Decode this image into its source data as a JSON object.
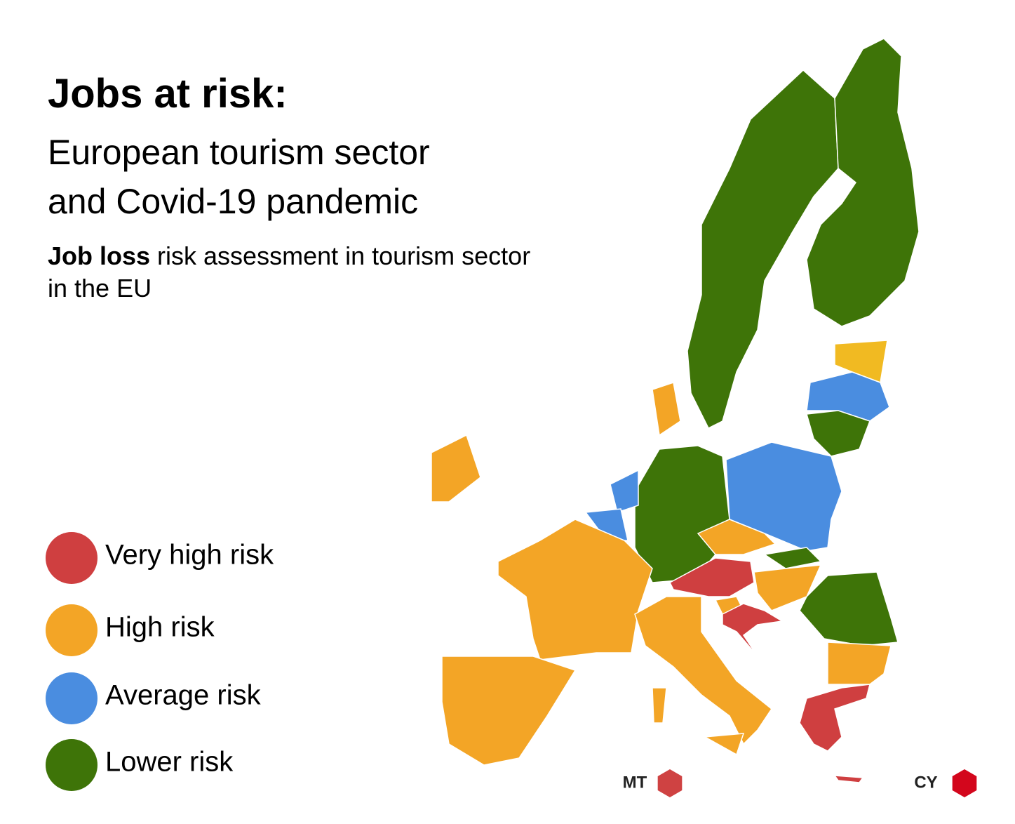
{
  "header": {
    "title": "Jobs at risk:",
    "subtitle_lines": [
      "European tourism sector",
      "and Covid-19 pandemic"
    ],
    "description_bold": "Job loss",
    "description_rest": " risk assessment in tourism sector in the EU"
  },
  "legend": {
    "items": [
      {
        "label": "Very high risk",
        "color": "#cf3f40"
      },
      {
        "label": "High risk",
        "color": "#f3a526"
      },
      {
        "label": "Average risk",
        "color": "#4a8de0"
      },
      {
        "label": "Lower risk",
        "color": "#3e7408"
      }
    ]
  },
  "estonia_color": "#f1ba22",
  "markers": [
    {
      "label": "MT",
      "color": "#cf4242"
    },
    {
      "label": "CY",
      "color": "#d3061c"
    }
  ]
}
